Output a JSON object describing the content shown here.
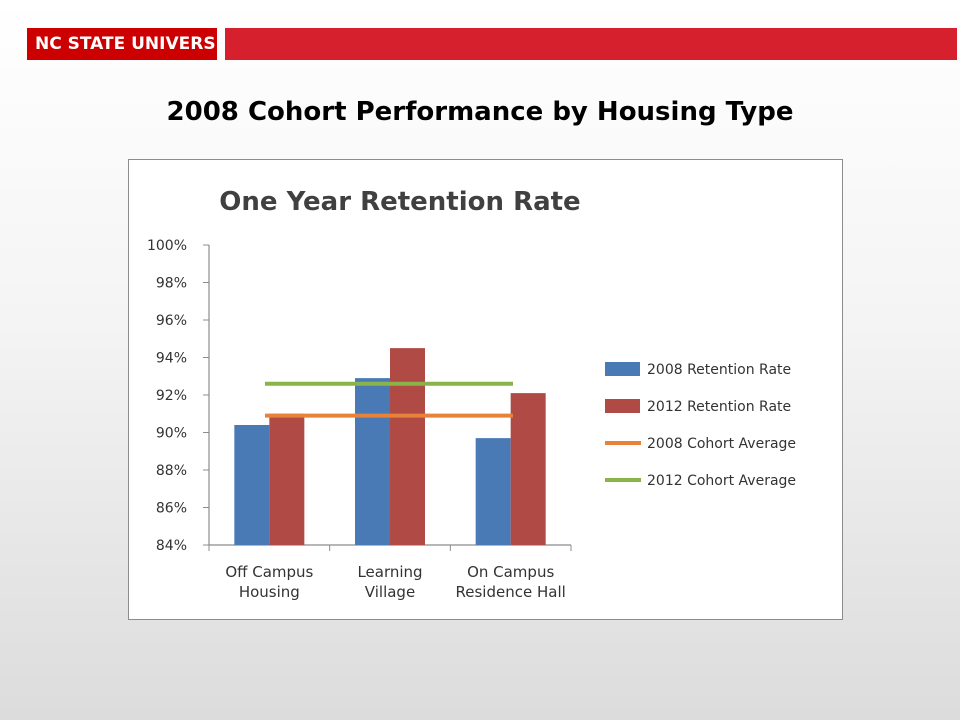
{
  "header": {
    "logo_text": "NC STATE UNIVERSITY",
    "brand_color": "#cc0000",
    "strip_color": "#d7202e"
  },
  "slide_title": "2008 Cohort Performance by Housing Type",
  "chart_data": {
    "type": "bar",
    "title": "One Year Retention Rate",
    "categories": [
      [
        "Off Campus",
        "Housing"
      ],
      [
        "Learning",
        "Village"
      ],
      [
        "On Campus",
        "Residence Hall"
      ]
    ],
    "series": [
      {
        "name": "2008 Retention Rate",
        "values": [
          90.4,
          92.9,
          89.7
        ],
        "color": "#4a7ab5"
      },
      {
        "name": "2012 Retention Rate",
        "values": [
          91.0,
          94.5,
          92.1
        ],
        "color": "#b04a45"
      }
    ],
    "reference_lines": [
      {
        "name": "2008 Cohort Average",
        "value": 90.9,
        "color": "#e8823a"
      },
      {
        "name": "2012 Cohort Average",
        "value": 92.6,
        "color": "#8ab34a"
      }
    ],
    "ylim": [
      84,
      100
    ],
    "yticks": [
      84,
      86,
      88,
      90,
      92,
      94,
      96,
      98,
      100
    ],
    "ytick_labels": [
      "84%",
      "86%",
      "88%",
      "90%",
      "92%",
      "94%",
      "96%",
      "98%",
      "100%"
    ],
    "xlabel": "",
    "ylabel": "",
    "grid": false,
    "legend_position": "right"
  }
}
